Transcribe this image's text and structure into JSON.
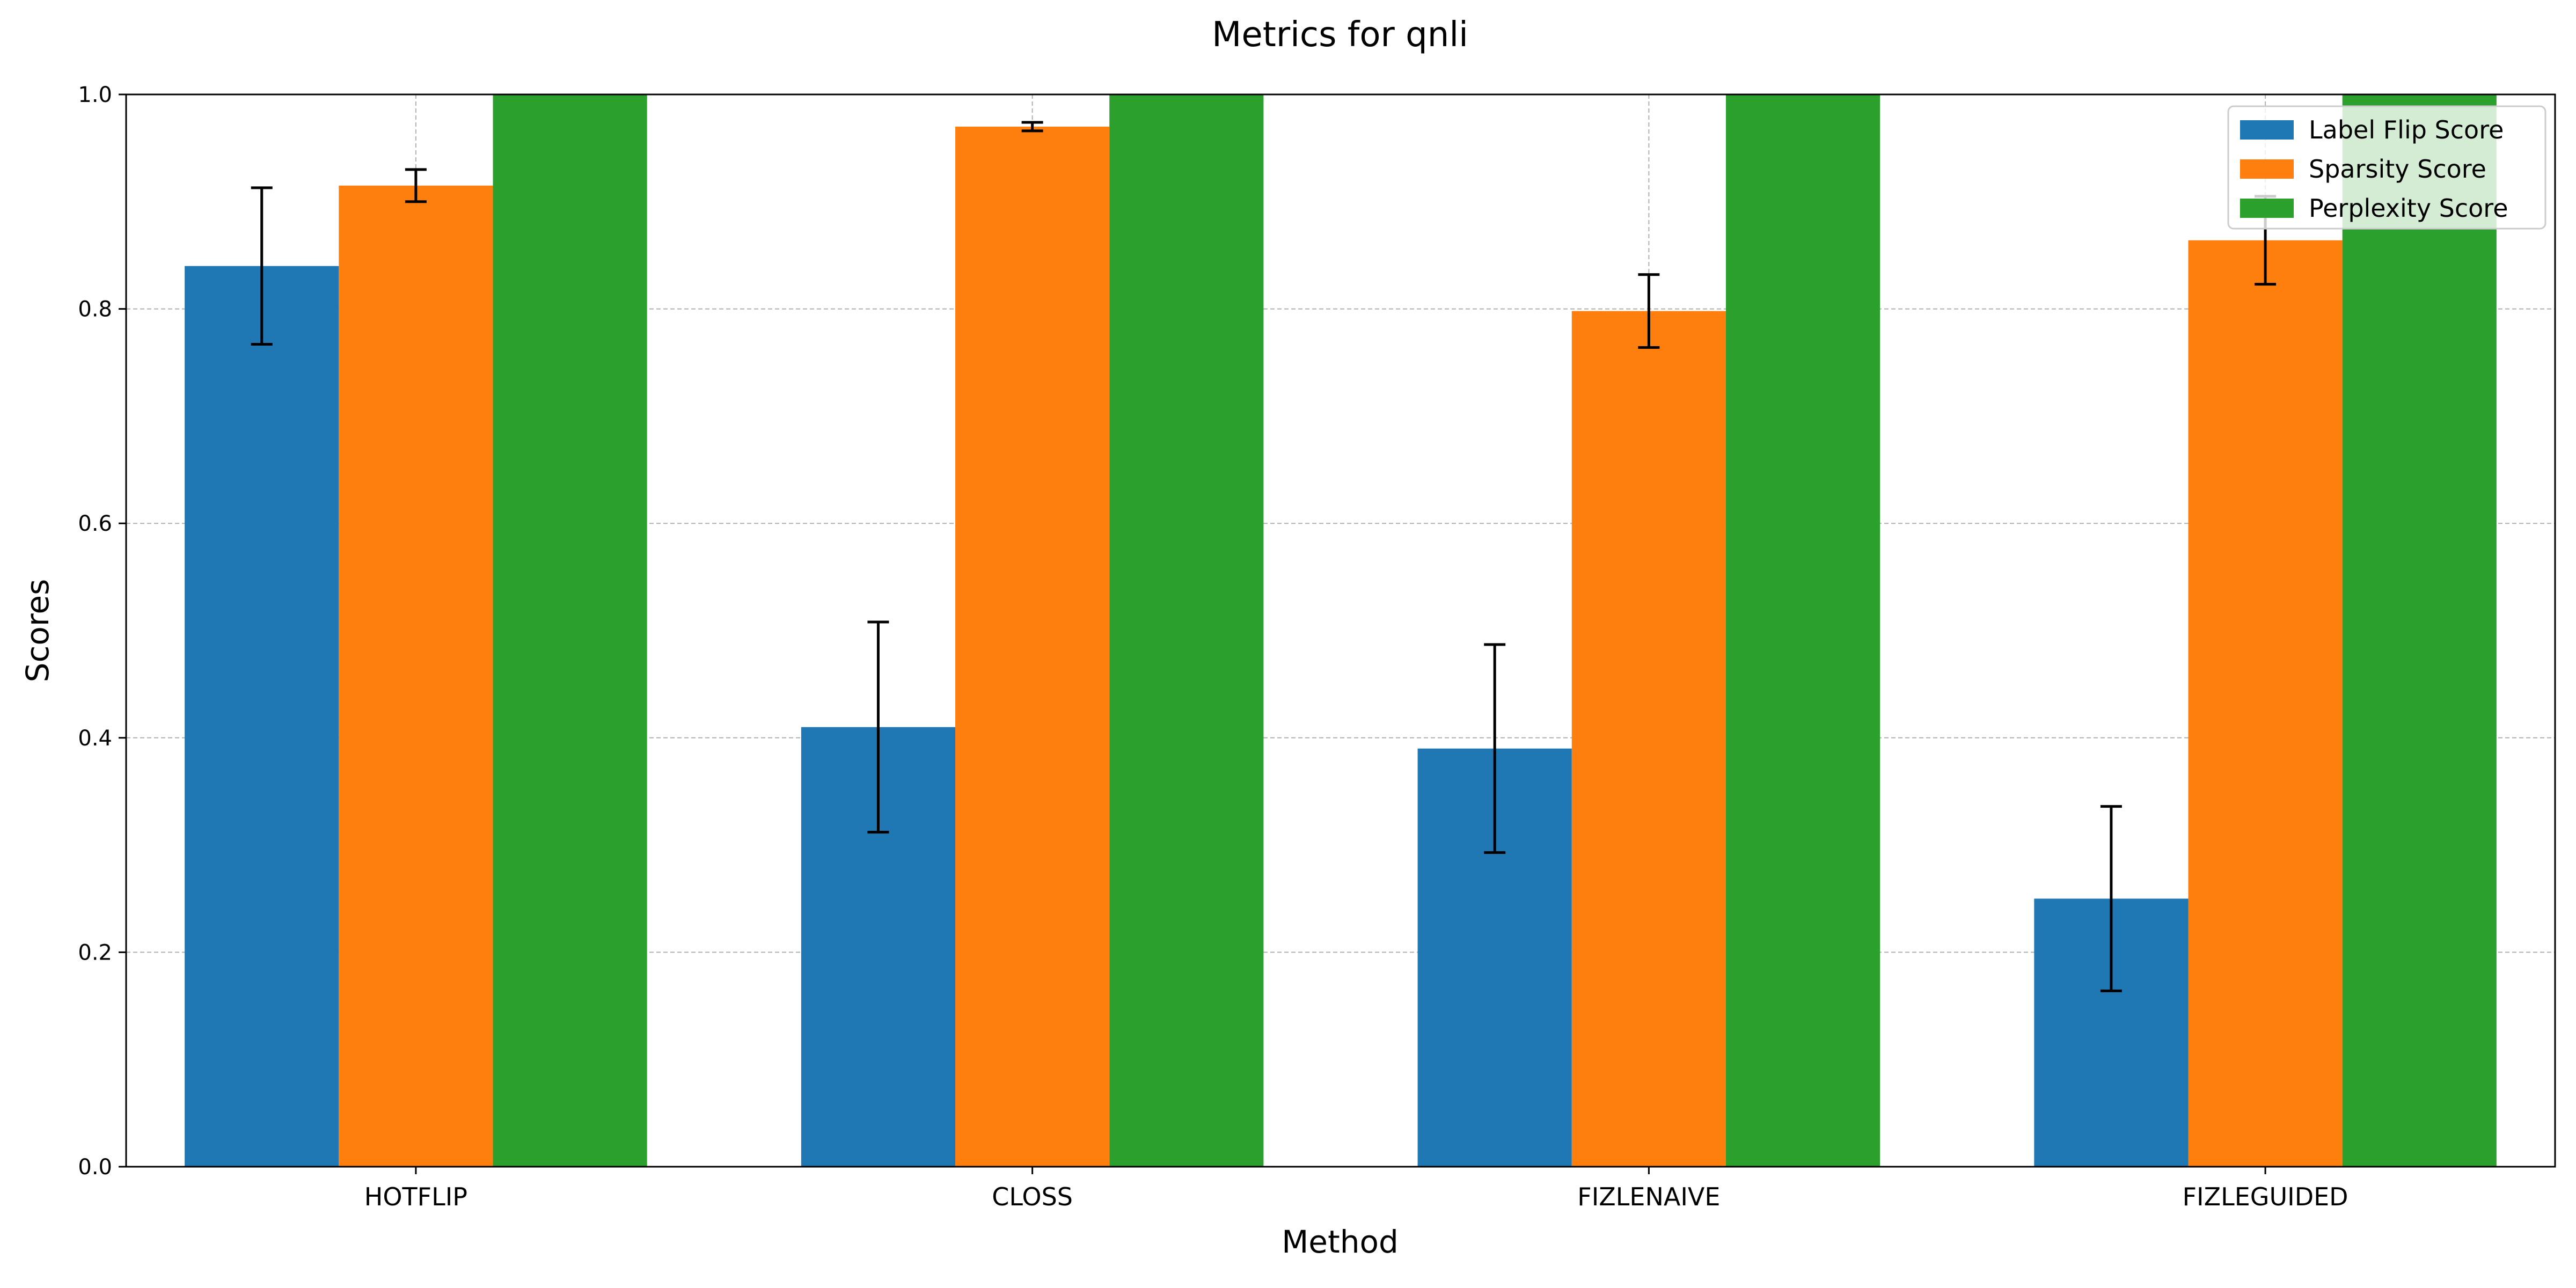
{
  "chart_data": {
    "type": "bar",
    "title": "Metrics for qnli",
    "xlabel": "Method",
    "ylabel": "Scores",
    "categories": [
      "HOTFLIP",
      "CLOSS",
      "FIZLENAIVE",
      "FIZLEGUIDED"
    ],
    "ylim": [
      0,
      1.0
    ],
    "yticks": [
      0.0,
      0.2,
      0.4,
      0.6,
      0.8,
      1.0
    ],
    "ytick_labels": [
      "0.0",
      "0.2",
      "0.4",
      "0.6",
      "0.8",
      "1.0"
    ],
    "grid": true,
    "legend_position": "top-right",
    "series": [
      {
        "name": "Label Flip Score",
        "color": "#1f77b4",
        "values": [
          0.84,
          0.41,
          0.39,
          0.25
        ],
        "error": [
          0.073,
          0.098,
          0.097,
          0.086
        ]
      },
      {
        "name": "Sparsity Score",
        "color": "#ff7f0e",
        "values": [
          0.915,
          0.97,
          0.798,
          0.864
        ],
        "error": [
          0.015,
          0.004,
          0.034,
          0.041
        ]
      },
      {
        "name": "Perplexity Score",
        "color": "#2ca02c",
        "values": [
          1.0,
          1.0,
          1.0,
          1.0
        ],
        "error": [
          0,
          0,
          0,
          0
        ]
      }
    ]
  }
}
